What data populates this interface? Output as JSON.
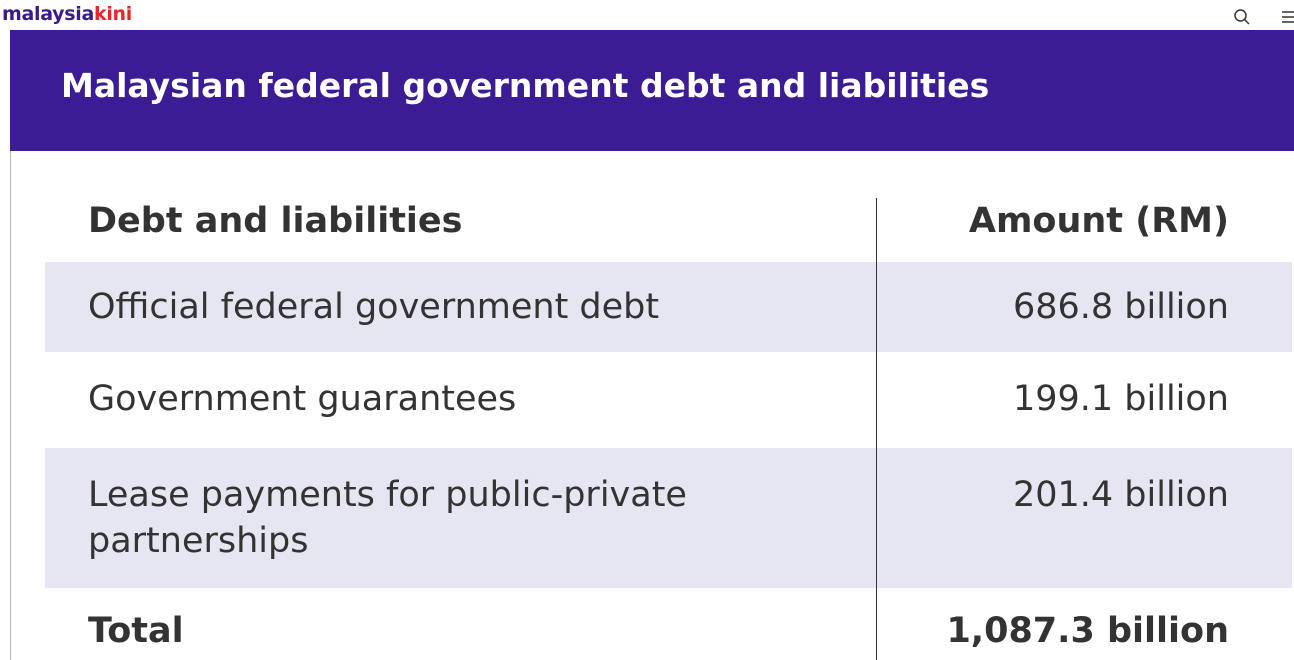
{
  "site": {
    "logo_part1": "malaysia",
    "logo_part2": "kini",
    "logo_color_primary": "#3a1a8c",
    "logo_color_accent": "#e8262a",
    "icons": [
      "search-icon",
      "menu-icon"
    ]
  },
  "infographic": {
    "title": "Malaysian federal government debt and liabilities",
    "banner_color": "#3b1c94",
    "row_shade_color": "#e6e5f2",
    "table": {
      "headers": [
        "Debt and liabilities",
        "Amount (RM)"
      ],
      "rows": [
        {
          "label": "Official federal government debt",
          "amount": "686.8 billion"
        },
        {
          "label": "Government guarantees",
          "amount": "199.1 billion"
        },
        {
          "label_line1": "Lease payments for public-private",
          "label_line2": "partnerships",
          "amount": "201.4 billion"
        }
      ],
      "total": {
        "label": "Total",
        "amount": "1,087.3 billion"
      }
    }
  }
}
